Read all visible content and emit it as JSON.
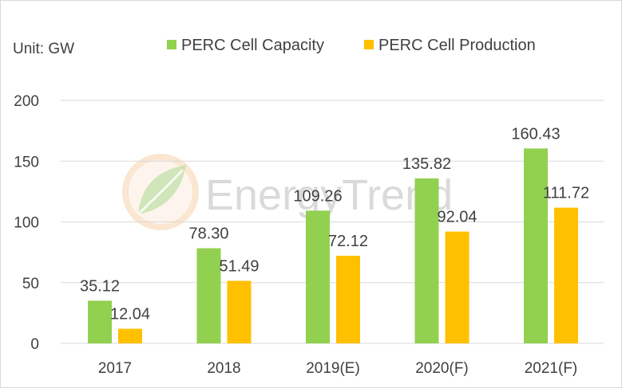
{
  "chart_data": {
    "type": "bar",
    "unit_label": "Unit: GW",
    "categories": [
      "2017",
      "2018",
      "2019(E)",
      "2020(F)",
      "2021(F)"
    ],
    "series": [
      {
        "name": "PERC Cell Capacity",
        "color": "#92d050",
        "values": [
          35.12,
          78.3,
          109.26,
          135.82,
          160.43
        ],
        "labels": [
          "35.12",
          "78.30",
          "109.26",
          "135.82",
          "160.43"
        ]
      },
      {
        "name": "PERC Cell Production",
        "color": "#ffc000",
        "values": [
          12.04,
          51.49,
          72.12,
          92.04,
          111.72
        ],
        "labels": [
          "12.04",
          "51.49",
          "72.12",
          "92.04",
          "111.72"
        ]
      }
    ],
    "y_ticks": [
      "0",
      "50",
      "100",
      "150",
      "200"
    ],
    "ylim": [
      0,
      200
    ],
    "grid": true,
    "gridline_color": "#d9d9d9",
    "legend_position": "top"
  },
  "watermark": {
    "text": "EnergyTrend",
    "icon": "leaf-logo-icon"
  }
}
